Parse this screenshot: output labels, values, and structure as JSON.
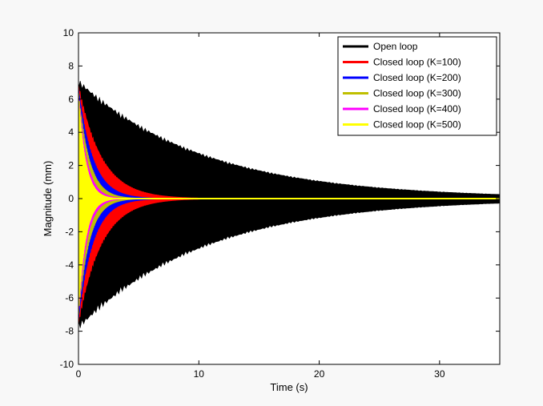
{
  "chart_data": {
    "type": "line",
    "title": "",
    "xlabel": "Time (s)",
    "ylabel": "Magnitude (mm)",
    "xlim": [
      0,
      35
    ],
    "ylim": [
      -10,
      10
    ],
    "xticks": [
      0,
      10,
      20,
      30
    ],
    "yticks": [
      -10,
      -8,
      -6,
      -4,
      -2,
      0,
      2,
      4,
      6,
      8,
      10
    ],
    "grid": false,
    "legend_position": "top-right",
    "series": [
      {
        "name": "Open loop",
        "color": "#000000",
        "peak": 7.2,
        "decay_time_constant": 10.5,
        "x": [
          0,
          2,
          5,
          10,
          15,
          20,
          25,
          30,
          35
        ],
        "envelope": [
          7.2,
          6.0,
          4.5,
          2.6,
          1.6,
          1.0,
          0.6,
          0.35,
          0.25
        ]
      },
      {
        "name": "Closed loop (K=100)",
        "color": "#ff0000",
        "peak": 7.0,
        "decay_time_constant": 1.9,
        "x": [
          0,
          1,
          2,
          3,
          5,
          8,
          12
        ],
        "envelope": [
          7.0,
          4.8,
          2.6,
          1.6,
          0.6,
          0.1,
          0.0
        ]
      },
      {
        "name": "Closed loop (K=200)",
        "color": "#0000ff",
        "peak": 6.8,
        "decay_time_constant": 1.2,
        "x": [
          0,
          1,
          2,
          3,
          5,
          8
        ],
        "envelope": [
          6.8,
          3.0,
          1.5,
          0.8,
          0.2,
          0.0
        ]
      },
      {
        "name": "Closed loop (K=300)",
        "color": "#bfbf00",
        "peak": 6.6,
        "decay_time_constant": 0.9,
        "x": [
          0,
          1,
          2,
          3,
          5
        ],
        "envelope": [
          6.6,
          2.6,
          1.1,
          0.5,
          0.1
        ]
      },
      {
        "name": "Closed loop (K=400)",
        "color": "#ff00ff",
        "peak": 6.5,
        "decay_time_constant": 0.7,
        "x": [
          0,
          1,
          2,
          3,
          5
        ],
        "envelope": [
          6.5,
          2.2,
          0.9,
          0.35,
          0.05
        ]
      },
      {
        "name": "Closed loop (K=500)",
        "color": "#ffff00",
        "peak": 6.4,
        "decay_time_constant": 0.6,
        "x": [
          0,
          1,
          2,
          3,
          5
        ],
        "envelope": [
          6.4,
          2.0,
          0.8,
          0.3,
          0.05
        ]
      }
    ]
  }
}
